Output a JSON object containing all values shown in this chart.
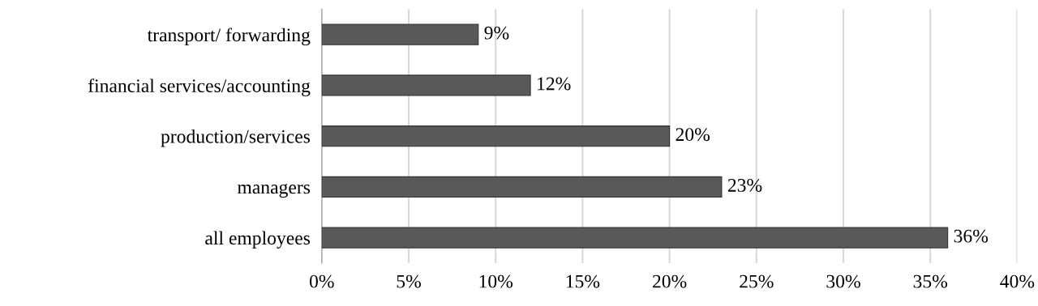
{
  "chart_data": {
    "type": "bar",
    "orientation": "horizontal",
    "categories": [
      "transport/ forwarding",
      "financial services/accounting",
      "production/services",
      "managers",
      "all employees"
    ],
    "values": [
      9,
      12,
      20,
      23,
      36
    ],
    "value_labels": [
      "9%",
      "12%",
      "20%",
      "23%",
      "36%"
    ],
    "color": "#595959",
    "xlim": [
      0,
      40
    ],
    "xticks": [
      {
        "value": 0,
        "label": "0%"
      },
      {
        "value": 5,
        "label": "5%"
      },
      {
        "value": 10,
        "label": "10%"
      },
      {
        "value": 15,
        "label": "15%"
      },
      {
        "value": 20,
        "label": "20%"
      },
      {
        "value": 25,
        "label": "25%"
      },
      {
        "value": 30,
        "label": "30%"
      },
      {
        "value": 35,
        "label": "35%"
      },
      {
        "value": 40,
        "label": "40%"
      }
    ],
    "grid": "x",
    "legend": false
  }
}
